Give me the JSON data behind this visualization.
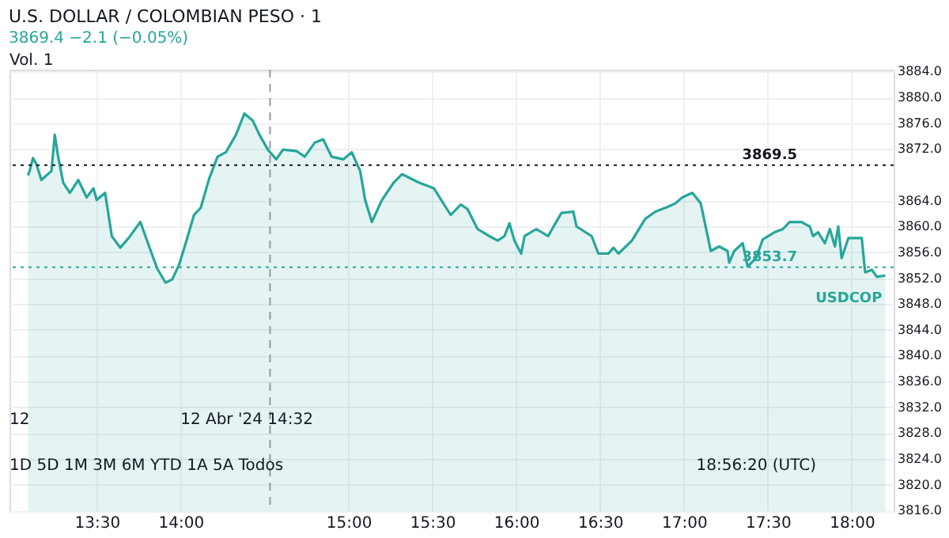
{
  "chart_data": {
    "type": "area",
    "title": "U.S. DOLLAR / COLOMBIAN PESO · 1",
    "subtitle": "3869.4 −2.1 (−0.05%)",
    "annotations": [
      "Vol. 1",
      "1D  5D  1M  3M  6M  YTD  1A  5A  Todos",
      "18:56:20 (UTC)",
      "12",
      "12 Abr '24  14:32"
    ],
    "x": [
      13.09,
      13.1,
      13.12,
      13.14,
      13.17,
      13.2,
      13.23,
      13.25,
      13.27,
      13.3,
      13.34,
      13.39,
      13.44,
      13.48,
      13.5,
      13.55,
      13.59,
      13.64,
      13.69,
      13.76,
      13.8,
      13.86,
      13.91,
      13.95,
      13.99,
      14.03,
      14.08,
      14.12,
      14.17,
      14.22,
      14.27,
      14.33,
      14.38,
      14.43,
      14.47,
      14.52,
      14.57,
      14.61,
      14.69,
      14.74,
      14.8,
      14.85,
      14.9,
      14.97,
      15.02,
      15.07,
      15.1,
      15.14,
      15.2,
      15.27,
      15.32,
      15.42,
      15.51,
      15.58,
      15.61,
      15.67,
      15.71,
      15.77,
      15.84,
      15.89,
      15.93,
      15.96,
      15.99,
      16.03,
      16.05,
      16.12,
      16.19,
      16.27,
      16.34,
      16.36,
      16.45,
      16.49,
      16.55,
      16.58,
      16.61,
      16.69,
      16.77,
      16.83,
      16.9,
      16.95,
      16.99,
      17.05,
      17.1,
      17.16,
      17.21,
      17.26,
      17.27,
      17.3,
      17.35,
      17.38,
      17.43,
      17.47,
      17.54,
      17.59,
      17.63,
      17.7,
      17.75,
      17.77,
      17.8,
      17.84,
      17.87,
      17.9,
      17.92,
      17.94,
      17.98,
      18.06,
      18.08,
      18.12,
      18.15,
      18.2
    ],
    "series": [
      {
        "name": "USDCOP",
        "color": "#26a69a",
        "values": [
          3867.9,
          3868.6,
          3870.6,
          3869.7,
          3867.2,
          3867.9,
          3868.6,
          3874.2,
          3870.8,
          3866.8,
          3865.2,
          3867.2,
          3864.5,
          3865.9,
          3864.1,
          3865.2,
          3858.5,
          3856.7,
          3858.2,
          3860.7,
          3857.8,
          3853.5,
          3851.3,
          3851.8,
          3854.0,
          3857.4,
          3861.8,
          3862.9,
          3867.4,
          3870.8,
          3871.5,
          3874.2,
          3877.5,
          3876.4,
          3874.2,
          3871.9,
          3870.4,
          3871.9,
          3871.7,
          3870.8,
          3873.0,
          3873.5,
          3870.8,
          3870.4,
          3871.5,
          3868.6,
          3864.1,
          3860.7,
          3864.1,
          3866.8,
          3868.1,
          3866.8,
          3865.9,
          3863.0,
          3861.8,
          3863.4,
          3862.7,
          3859.6,
          3858.5,
          3857.8,
          3858.5,
          3860.5,
          3857.8,
          3855.8,
          3858.5,
          3859.6,
          3858.5,
          3862.1,
          3862.3,
          3860.0,
          3858.5,
          3855.8,
          3855.8,
          3856.7,
          3855.8,
          3857.8,
          3861.2,
          3862.3,
          3863.0,
          3863.6,
          3864.5,
          3865.2,
          3863.6,
          3856.2,
          3856.9,
          3856.2,
          3854.4,
          3856.2,
          3857.4,
          3853.8,
          3855.1,
          3858.0,
          3859.1,
          3859.6,
          3860.7,
          3860.7,
          3860.0,
          3858.5,
          3859.1,
          3857.4,
          3859.6,
          3856.9,
          3860.0,
          3855.1,
          3858.2,
          3858.2,
          3852.9,
          3853.3,
          3852.2,
          3852.4
        ]
      }
    ],
    "xlim": [
      12.98,
      18.25
    ],
    "xticks": [
      {
        "value": 13.5,
        "label": "13:30"
      },
      {
        "value": 14,
        "label": "14:00"
      },
      {
        "value": 15,
        "label": "15:00"
      },
      {
        "value": 15.5,
        "label": "15:30"
      },
      {
        "value": 16,
        "label": "16:00"
      },
      {
        "value": 16.5,
        "label": "16:30"
      },
      {
        "value": 17,
        "label": "17:00"
      },
      {
        "value": 17.5,
        "label": "17:30"
      },
      {
        "value": 18,
        "label": "18:00"
      }
    ],
    "ylim": [
      3815.9,
      3884.3
    ],
    "yticks": [
      {
        "value": 3816,
        "label": "3816.0"
      },
      {
        "value": 3820,
        "label": "3820.0"
      },
      {
        "value": 3824,
        "label": "3824.0"
      },
      {
        "value": 3828,
        "label": "3828.0"
      },
      {
        "value": 3832,
        "label": "3832.0"
      },
      {
        "value": 3836,
        "label": "3836.0"
      },
      {
        "value": 3840,
        "label": "3840.0"
      },
      {
        "value": 3844,
        "label": "3844.0"
      },
      {
        "value": 3848,
        "label": "3848.0"
      },
      {
        "value": 3852,
        "label": "3852.0"
      },
      {
        "value": 3856,
        "label": "3856.0"
      },
      {
        "value": 3860,
        "label": "3860.0"
      },
      {
        "value": 3864,
        "label": "3864.0"
      },
      {
        "value": 3872,
        "label": "3872.0"
      },
      {
        "value": 3876,
        "label": "3876.0"
      },
      {
        "value": 3880,
        "label": "3880.0"
      },
      {
        "value": 3884,
        "label": "3884.0"
      }
    ],
    "ref_lines": [
      {
        "axis": "y",
        "value": 3869.5,
        "label": "3869.5",
        "color": "#131722",
        "line_style": "dotted"
      },
      {
        "axis": "y",
        "value": 3853.7,
        "label": "3853.7",
        "color": "#26a69a",
        "line_style": "dotted"
      },
      {
        "axis": "x",
        "value": 14.533,
        "color": "#9598a1",
        "line_style": "dashed"
      }
    ],
    "grid": true,
    "line_style": "solid",
    "marker": "none"
  }
}
